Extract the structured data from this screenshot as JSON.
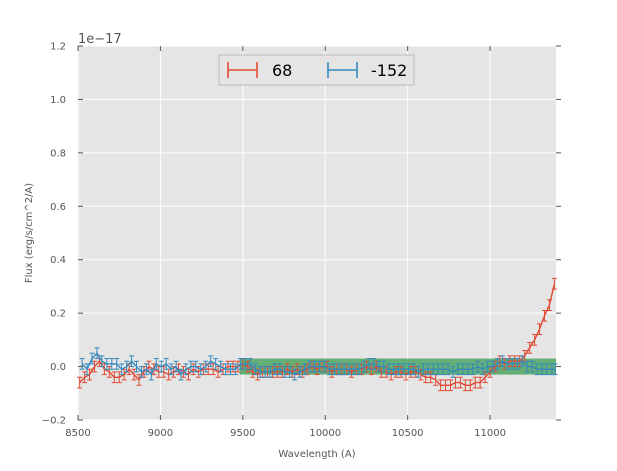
{
  "chart_data": {
    "type": "line",
    "xlabel": "Wavelength (A)",
    "ylabel": "Flux (erg/s/cm^2/A)",
    "offset_text": "1e−17",
    "xlim": [
      8500,
      11400
    ],
    "ylim": [
      -0.2,
      1.2
    ],
    "x_ticks": [
      8500,
      9000,
      9500,
      10000,
      10500,
      11000
    ],
    "x_tick_labels": [
      "8500",
      "9000",
      "9500",
      "10000",
      "10500",
      "11000"
    ],
    "y_ticks": [
      -0.2,
      0.0,
      0.2,
      0.4,
      0.6,
      0.8,
      1.0,
      1.2
    ],
    "y_tick_labels": [
      "−0.2",
      "0.0",
      "0.2",
      "0.4",
      "0.6",
      "0.8",
      "1.0",
      "1.2"
    ],
    "grid": true,
    "legend_position": "top-center",
    "shaded_band": {
      "x": [
        9480,
        11400
      ],
      "y": [
        -0.03,
        0.03
      ],
      "color": "#55a868"
    },
    "series": [
      {
        "name": "68",
        "color": "#e24a33",
        "x": [
          8510,
          8540,
          8570,
          8600,
          8630,
          8660,
          8690,
          8720,
          8750,
          8780,
          8810,
          8840,
          8870,
          8900,
          8930,
          8960,
          8990,
          9020,
          9050,
          9080,
          9110,
          9140,
          9170,
          9200,
          9230,
          9260,
          9290,
          9320,
          9350,
          9380,
          9410,
          9440,
          9470,
          9500,
          9530,
          9560,
          9590,
          9620,
          9650,
          9680,
          9710,
          9740,
          9770,
          9800,
          9830,
          9860,
          9890,
          9920,
          9950,
          9980,
          10010,
          10040,
          10070,
          10100,
          10130,
          10160,
          10190,
          10220,
          10250,
          10280,
          10310,
          10340,
          10370,
          10400,
          10430,
          10460,
          10490,
          10520,
          10550,
          10580,
          10610,
          10640,
          10670,
          10700,
          10730,
          10760,
          10790,
          10820,
          10850,
          10880,
          10910,
          10940,
          10970,
          11000,
          11030,
          11060,
          11090,
          11120,
          11150,
          11180,
          11210,
          11240,
          11270,
          11300,
          11330,
          11360,
          11390
        ],
        "y": [
          -0.06,
          -0.04,
          -0.03,
          0.0,
          0.02,
          -0.01,
          -0.02,
          -0.04,
          -0.04,
          -0.03,
          -0.01,
          -0.03,
          -0.05,
          -0.02,
          0.0,
          -0.01,
          -0.02,
          -0.02,
          -0.03,
          -0.02,
          -0.01,
          -0.02,
          -0.03,
          -0.01,
          -0.02,
          -0.01,
          -0.01,
          -0.01,
          -0.02,
          -0.01,
          0.0,
          0.0,
          0.0,
          0.01,
          0.0,
          -0.02,
          -0.03,
          -0.02,
          -0.02,
          -0.02,
          -0.02,
          -0.02,
          -0.01,
          -0.02,
          -0.01,
          -0.02,
          -0.01,
          0.0,
          -0.01,
          0.0,
          0.0,
          -0.02,
          -0.01,
          -0.01,
          -0.01,
          -0.02,
          -0.01,
          -0.01,
          0.0,
          -0.01,
          0.0,
          -0.02,
          -0.02,
          -0.03,
          -0.02,
          -0.02,
          -0.03,
          -0.02,
          -0.02,
          -0.03,
          -0.04,
          -0.04,
          -0.05,
          -0.07,
          -0.07,
          -0.07,
          -0.06,
          -0.06,
          -0.07,
          -0.07,
          -0.06,
          -0.06,
          -0.04,
          -0.02,
          0.0,
          0.02,
          0.01,
          0.02,
          0.02,
          0.02,
          0.04,
          0.07,
          0.1,
          0.14,
          0.19,
          0.23,
          0.31
        ],
        "err": 0.02
      },
      {
        "name": "-152",
        "color": "#348abd",
        "x": [
          8525,
          8555,
          8585,
          8615,
          8645,
          8675,
          8705,
          8735,
          8765,
          8795,
          8825,
          8855,
          8885,
          8915,
          8945,
          8975,
          9005,
          9035,
          9065,
          9095,
          9125,
          9155,
          9185,
          9215,
          9245,
          9275,
          9305,
          9335,
          9365,
          9395,
          9425,
          9455,
          9485,
          9515,
          9545,
          9575,
          9605,
          9635,
          9665,
          9695,
          9725,
          9755,
          9785,
          9815,
          9845,
          9875,
          9905,
          9935,
          9965,
          9995,
          10025,
          10055,
          10085,
          10115,
          10145,
          10175,
          10205,
          10235,
          10265,
          10295,
          10325,
          10355,
          10385,
          10415,
          10445,
          10475,
          10505,
          10535,
          10565,
          10595,
          10625,
          10655,
          10685,
          10715,
          10745,
          10775,
          10805,
          10835,
          10865,
          10895,
          10925,
          10955,
          10985,
          11015,
          11045,
          11075,
          11105,
          11135,
          11165,
          11195,
          11225,
          11255,
          11285,
          11315,
          11345,
          11375,
          11395
        ],
        "y": [
          0.01,
          -0.01,
          0.03,
          0.05,
          0.02,
          0.01,
          0.01,
          0.01,
          -0.01,
          0.0,
          0.02,
          0.0,
          -0.02,
          -0.01,
          -0.03,
          0.01,
          0.0,
          0.01,
          -0.01,
          0.0,
          -0.03,
          -0.01,
          0.0,
          0.0,
          -0.01,
          0.0,
          0.02,
          0.01,
          0.0,
          -0.01,
          -0.01,
          -0.01,
          0.01,
          0.01,
          0.01,
          -0.01,
          -0.02,
          -0.02,
          -0.02,
          -0.01,
          -0.01,
          -0.02,
          -0.02,
          -0.03,
          -0.02,
          -0.01,
          0.0,
          0.0,
          0.0,
          0.0,
          -0.01,
          -0.01,
          -0.01,
          -0.01,
          -0.01,
          -0.01,
          -0.01,
          0.0,
          0.01,
          0.01,
          0.0,
          0.0,
          -0.01,
          -0.01,
          -0.01,
          -0.01,
          -0.01,
          -0.01,
          -0.02,
          -0.01,
          -0.01,
          -0.01,
          -0.01,
          -0.01,
          -0.01,
          -0.02,
          -0.01,
          -0.01,
          -0.01,
          -0.01,
          0.0,
          -0.01,
          0.0,
          0.0,
          0.01,
          0.02,
          0.01,
          0.01,
          0.01,
          0.02,
          0.0,
          0.0,
          -0.01,
          -0.01,
          -0.01,
          -0.01,
          -0.01
        ],
        "err": 0.02
      }
    ]
  }
}
